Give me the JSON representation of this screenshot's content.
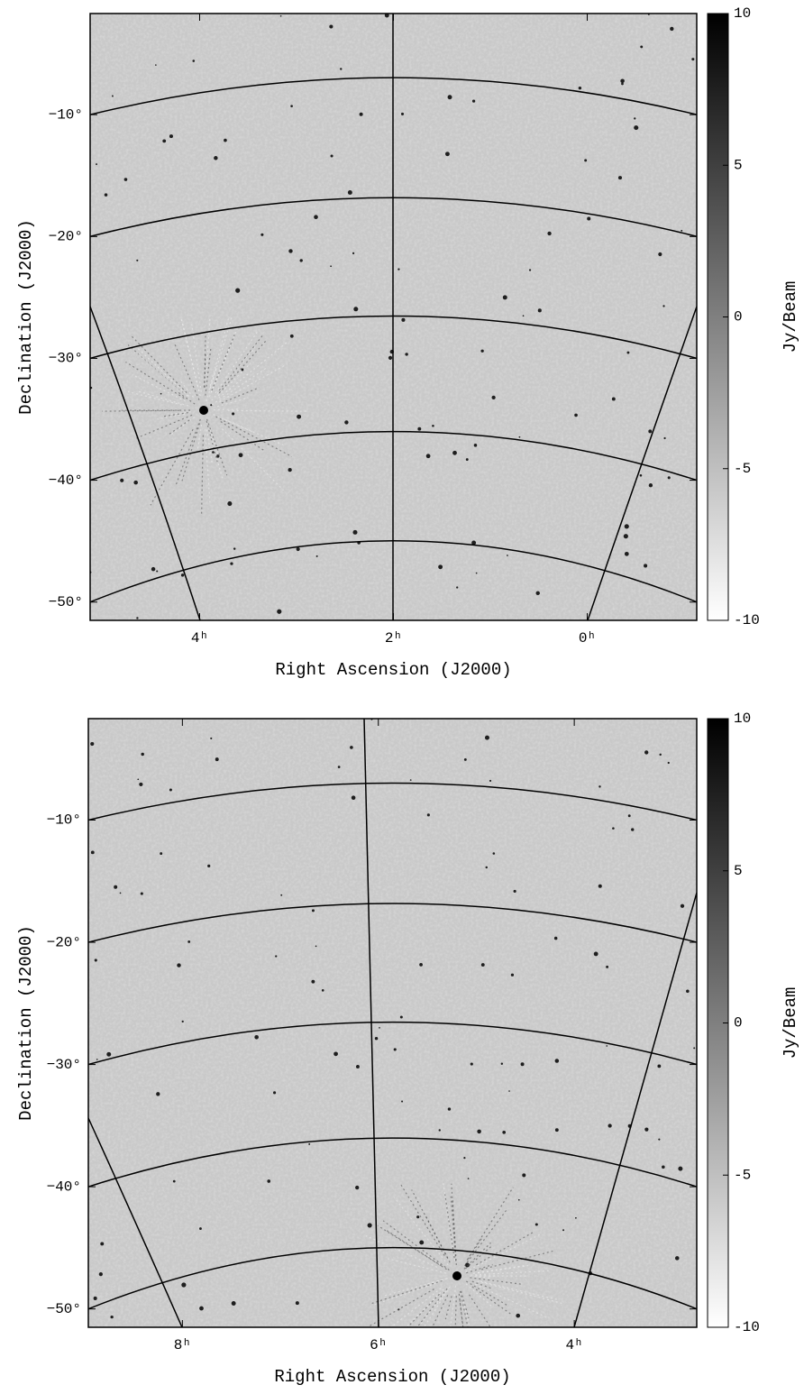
{
  "chart_data": [
    {
      "type": "image",
      "xlabel": "Right Ascension (J2000)",
      "ylabel": "Declination (J2000)",
      "xlim": [
        5.13,
        -1.13
      ],
      "ylim": [
        -51.5,
        -1.7
      ],
      "xticks": [
        {
          "value": 4,
          "label": "4ʰ"
        },
        {
          "value": 2,
          "label": "2ʰ"
        },
        {
          "value": 0,
          "label": "0ʰ"
        }
      ],
      "yticks": [
        {
          "value": -10,
          "label": "−10°"
        },
        {
          "value": -20,
          "label": "−20°"
        },
        {
          "value": -30,
          "label": "−30°"
        },
        {
          "value": -40,
          "label": "−40°"
        },
        {
          "value": -50,
          "label": "−50°"
        }
      ],
      "colorbar": {
        "label": "Jy/Beam",
        "lim": [
          -10,
          10
        ],
        "ticks": [
          10,
          5,
          0,
          -5,
          -10
        ],
        "colors": [
          "#ffffff",
          "#000000"
        ]
      }
    },
    {
      "type": "image",
      "xlabel": "Right Ascension (J2000)",
      "ylabel": "Declination (J2000)",
      "xlim": [
        8.96,
        2.75
      ],
      "ylim": [
        -51.5,
        -1.7
      ],
      "xticks": [
        {
          "value": 8,
          "label": "8ʰ"
        },
        {
          "value": 6,
          "label": "6ʰ"
        },
        {
          "value": 4,
          "label": "4ʰ"
        }
      ],
      "yticks": [
        {
          "value": -10,
          "label": "−10°"
        },
        {
          "value": -20,
          "label": "−20°"
        },
        {
          "value": -30,
          "label": "−30°"
        },
        {
          "value": -40,
          "label": "−40°"
        },
        {
          "value": -50,
          "label": "−50°"
        }
      ],
      "colorbar": {
        "label": "Jy/Beam",
        "lim": [
          -10,
          10
        ],
        "ticks": [
          10,
          5,
          0,
          -5,
          -10
        ],
        "colors": [
          "#ffffff",
          "#000000"
        ]
      }
    }
  ]
}
